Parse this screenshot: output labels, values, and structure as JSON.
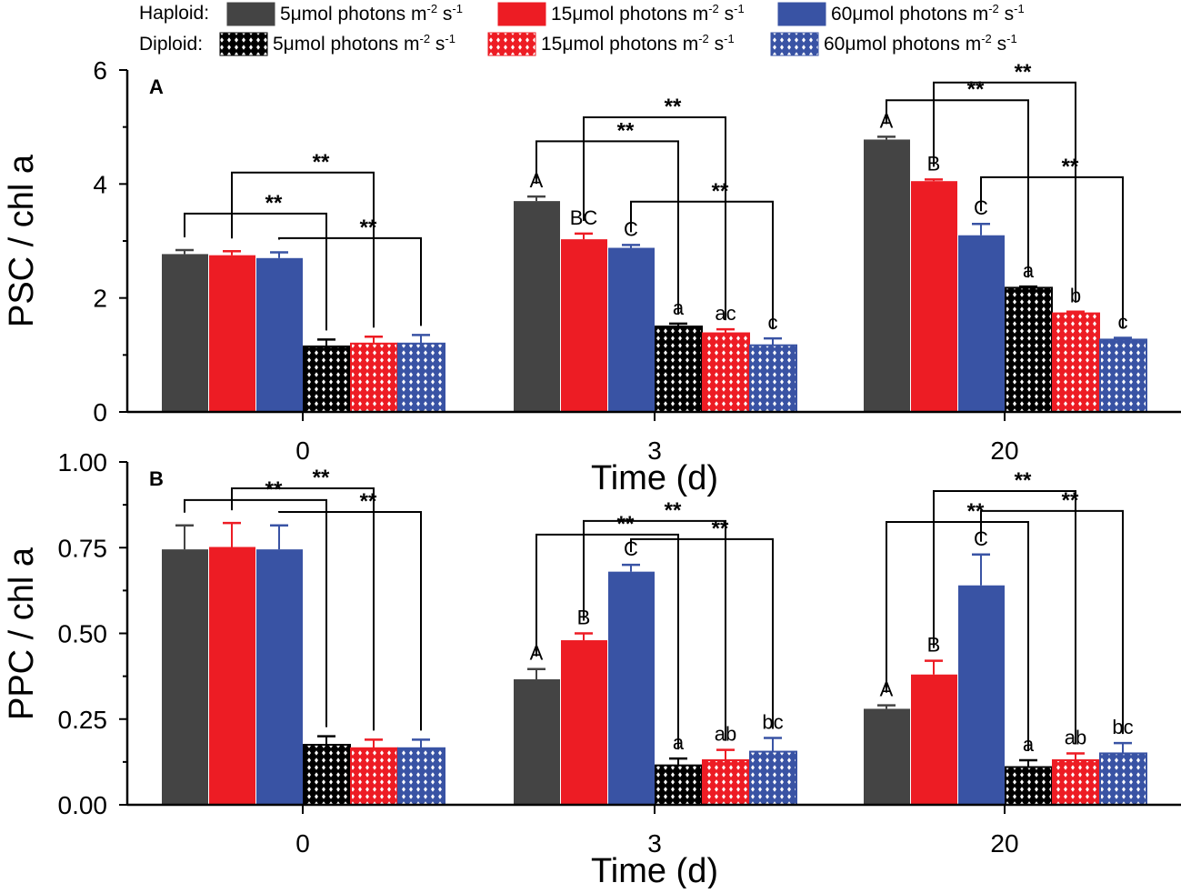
{
  "colors": {
    "dark": "#444444",
    "red": "#ED1C24",
    "blue": "#3953A4",
    "black": "#000000"
  },
  "legend": {
    "haploid_label": "Haploid:",
    "diploid_label": "Diploid:",
    "items": [
      {
        "label": "5μmol photons m",
        "sup": "-2",
        "s": " s",
        "sup2": "-1",
        "color": "dark",
        "hatched": false
      },
      {
        "label": "15μmol photons m",
        "sup": "-2",
        "s": " s",
        "sup2": "-1",
        "color": "red",
        "hatched": false
      },
      {
        "label": "60μmol photons m",
        "sup": "-2",
        "s": " s",
        "sup2": "-1",
        "color": "blue",
        "hatched": false
      },
      {
        "label": "5μmol photons m",
        "sup": "-2",
        "s": " s",
        "sup2": "-1",
        "color": "black",
        "hatched": true
      },
      {
        "label": "15μmol photons m",
        "sup": "-2",
        "s": " s",
        "sup2": "-1",
        "color": "red",
        "hatched": true
      },
      {
        "label": "60μmol photons m",
        "sup": "-2",
        "s": " s",
        "sup2": "-1",
        "color": "blue",
        "hatched": true
      }
    ]
  },
  "chart_data": [
    {
      "type": "bar",
      "panel": "A",
      "xlabel": "Time (d)",
      "ylabel": "PSC / chl a",
      "ylim": [
        0,
        6
      ],
      "yticks": [
        "0",
        "2",
        "4",
        "6"
      ],
      "ytick_values": [
        0,
        2,
        4,
        6
      ],
      "categories": [
        "0",
        "3",
        "20"
      ],
      "series_colors": [
        "dark",
        "red",
        "blue",
        "black",
        "red",
        "blue"
      ],
      "series_hatched": [
        false,
        false,
        false,
        true,
        true,
        true
      ],
      "values": [
        [
          2.77,
          2.75,
          2.7,
          1.15,
          1.2,
          1.2
        ],
        [
          3.7,
          3.03,
          2.88,
          1.5,
          1.38,
          1.17
        ],
        [
          4.78,
          4.05,
          3.1,
          2.18,
          1.73,
          1.27
        ]
      ],
      "errors": [
        [
          0.07,
          0.07,
          0.1,
          0.12,
          0.12,
          0.15
        ],
        [
          0.08,
          0.1,
          0.05,
          0.05,
          0.07,
          0.12
        ],
        [
          0.05,
          0.03,
          0.2,
          0.02,
          0.03,
          0.03
        ]
      ],
      "letters": [
        [
          "",
          "",
          "",
          "",
          "",
          ""
        ],
        [
          "A",
          "BC",
          "C",
          "a",
          "ac",
          "c"
        ],
        [
          "A",
          "B",
          "C",
          "a",
          "b",
          "c"
        ]
      ],
      "brackets": [
        [
          {
            "from": 0,
            "to": 3,
            "y": 3.48,
            "label": "**"
          },
          {
            "from": 1,
            "to": 4,
            "y": 4.2,
            "label": "**"
          },
          {
            "from": 2,
            "to": 5,
            "y": 3.05,
            "label": "**"
          }
        ],
        [
          {
            "from": 0,
            "to": 3,
            "y": 4.75,
            "label": "**"
          },
          {
            "from": 1,
            "to": 4,
            "y": 5.17,
            "label": "**"
          },
          {
            "from": 2,
            "to": 5,
            "y": 3.69,
            "label": "**"
          }
        ],
        [
          {
            "from": 0,
            "to": 3,
            "y": 5.47,
            "label": "**"
          },
          {
            "from": 1,
            "to": 4,
            "y": 5.78,
            "label": "**"
          },
          {
            "from": 2,
            "to": 5,
            "y": 4.12,
            "label": "**"
          }
        ]
      ]
    },
    {
      "type": "bar",
      "panel": "B",
      "xlabel": "Time (d)",
      "ylabel": "PPC / chl a",
      "ylim": [
        0,
        1
      ],
      "yticks": [
        "0.00",
        "0.25",
        "0.50",
        "0.75",
        "1.00"
      ],
      "ytick_values": [
        0,
        0.25,
        0.5,
        0.75,
        1.0
      ],
      "categories": [
        "0",
        "3",
        "20"
      ],
      "series_colors": [
        "dark",
        "red",
        "blue",
        "black",
        "red",
        "blue"
      ],
      "series_hatched": [
        false,
        false,
        false,
        true,
        true,
        true
      ],
      "values": [
        [
          0.745,
          0.752,
          0.745,
          0.175,
          0.165,
          0.165
        ],
        [
          0.366,
          0.48,
          0.68,
          0.115,
          0.13,
          0.155
        ],
        [
          0.28,
          0.38,
          0.64,
          0.11,
          0.13,
          0.15
        ]
      ],
      "errors": [
        [
          0.07,
          0.07,
          0.07,
          0.025,
          0.025,
          0.025
        ],
        [
          0.03,
          0.02,
          0.02,
          0.02,
          0.03,
          0.04
        ],
        [
          0.01,
          0.04,
          0.09,
          0.02,
          0.02,
          0.03
        ]
      ],
      "letters": [
        [
          "",
          "",
          "",
          "",
          "",
          ""
        ],
        [
          "A",
          "B",
          "C",
          "a",
          "ab",
          "bc"
        ],
        [
          "A",
          "B",
          "C",
          "a",
          "ab",
          "bc"
        ]
      ],
      "brackets": [
        [
          {
            "from": 0,
            "to": 3,
            "y": 0.889,
            "label": "**"
          },
          {
            "from": 1,
            "to": 4,
            "y": 0.923,
            "label": "**"
          },
          {
            "from": 2,
            "to": 5,
            "y": 0.854,
            "label": "**"
          }
        ],
        [
          {
            "from": 0,
            "to": 3,
            "y": 0.788,
            "label": "**"
          },
          {
            "from": 1,
            "to": 4,
            "y": 0.828,
            "label": "**"
          },
          {
            "from": 2,
            "to": 5,
            "y": 0.775,
            "label": "**"
          }
        ],
        [
          {
            "from": 0,
            "to": 3,
            "y": 0.825,
            "label": "**"
          },
          {
            "from": 1,
            "to": 4,
            "y": 0.915,
            "label": "**"
          },
          {
            "from": 2,
            "to": 5,
            "y": 0.857,
            "label": "**"
          }
        ]
      ]
    }
  ]
}
